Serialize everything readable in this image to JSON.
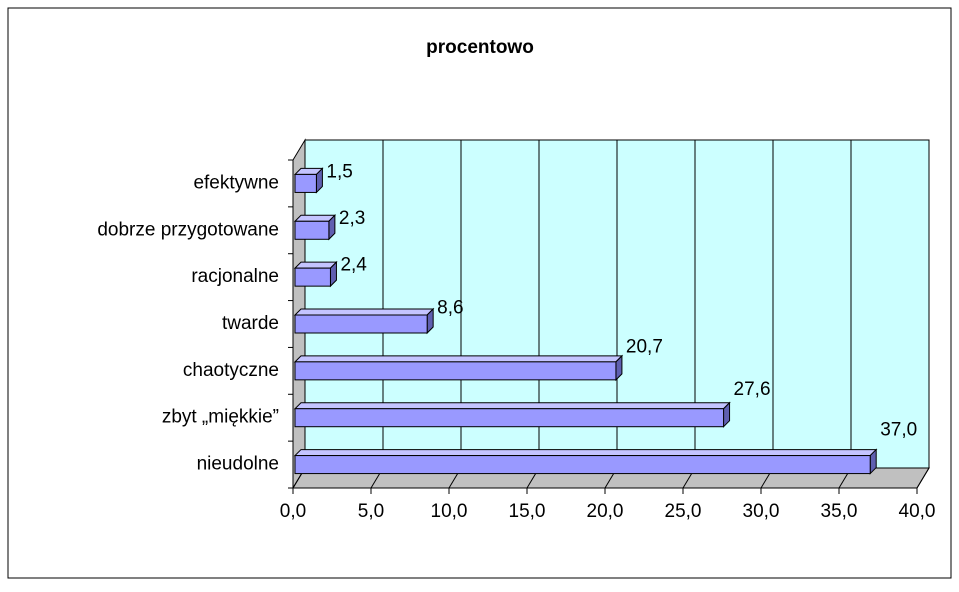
{
  "chart_data": {
    "type": "bar",
    "title": "procentowo",
    "categories": [
      "efektywne",
      "dobrze przygotowane",
      "racjonalne",
      "twarde",
      "chaotyczne",
      "zbyt „miękkie”",
      "nieudolne"
    ],
    "values": [
      1.5,
      2.3,
      2.4,
      8.6,
      20.7,
      27.6,
      37.0
    ],
    "value_labels": [
      "1,5",
      "2,3",
      "2,4",
      "8,6",
      "20,7",
      "27,6",
      "37,0"
    ],
    "color": "#9999ff",
    "xlim": [
      0,
      40
    ],
    "xticks": [
      {
        "value": 0,
        "label": "0,0"
      },
      {
        "value": 5,
        "label": "5,0"
      },
      {
        "value": 10,
        "label": "10,0"
      },
      {
        "value": 15,
        "label": "15,0"
      },
      {
        "value": 20,
        "label": "20,0"
      },
      {
        "value": 25,
        "label": "25,0"
      },
      {
        "value": 30,
        "label": "30,0"
      },
      {
        "value": 35,
        "label": "35,0"
      },
      {
        "value": 40,
        "label": "40,0"
      }
    ],
    "grid": true
  }
}
